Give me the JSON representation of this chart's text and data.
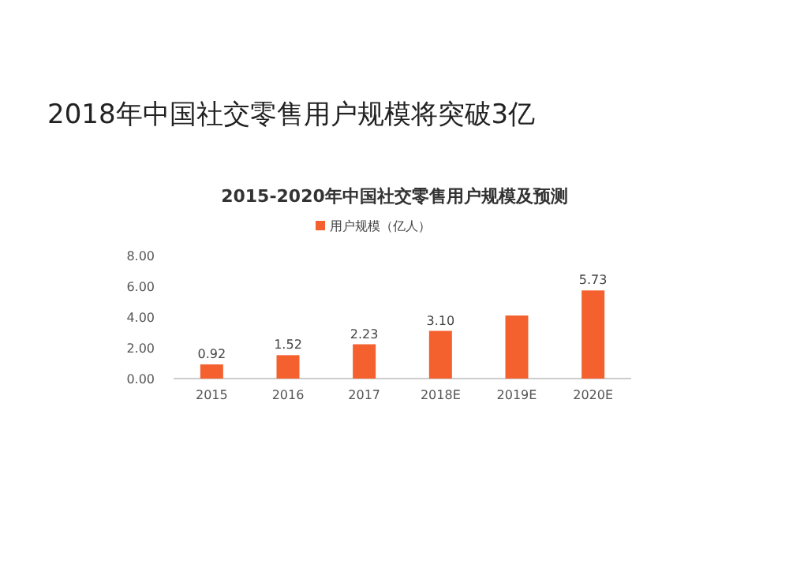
{
  "chart_data": {
    "type": "bar",
    "title": "2018年中国社交零售用户规模将突破3亿",
    "subtitle": "2015-2020年中国社交零售用户规模及预测",
    "categories": [
      "2015",
      "2016",
      "2017",
      "2018E",
      "2019E",
      "2020E"
    ],
    "series": [
      {
        "name": "用户规模（亿人）",
        "color": "#f4602e",
        "values": [
          0.92,
          1.52,
          2.23,
          3.1,
          4.1,
          5.73
        ],
        "value_labels": [
          "0.92",
          "1.52",
          "2.23",
          "3.10",
          null,
          "5.73"
        ]
      }
    ],
    "ylim": [
      0,
      8
    ],
    "yticks": [
      {
        "value": 0,
        "label": "0.00"
      },
      {
        "value": 2,
        "label": "2.00"
      },
      {
        "value": 4,
        "label": "4.00"
      },
      {
        "value": 6,
        "label": "6.00"
      },
      {
        "value": 8,
        "label": "8.00"
      }
    ],
    "legend": "top",
    "grid": false
  }
}
